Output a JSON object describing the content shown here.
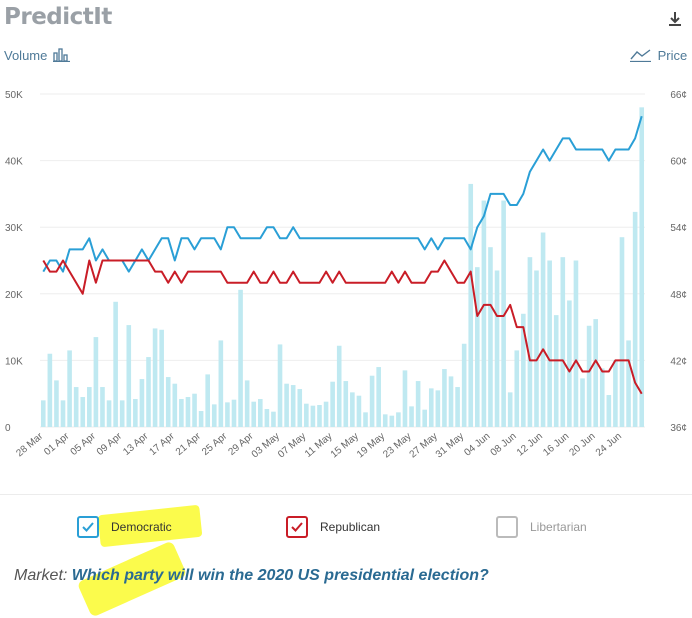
{
  "header": {
    "logo_text": "PredictIt"
  },
  "toolbar": {
    "volume_label": "Volume",
    "price_label": "Price"
  },
  "colors": {
    "democratic": "#2a9fd6",
    "republican": "#c91d27",
    "libertarian": "#bbbbbb",
    "volume_bar": "#bfe9f1"
  },
  "legend": [
    {
      "label": "Democratic",
      "checked": true,
      "color": "#2a9fd6"
    },
    {
      "label": "Republican",
      "checked": true,
      "color": "#c91d27"
    },
    {
      "label": "Libertarian",
      "checked": false,
      "color": "#bbbbbb"
    }
  ],
  "market": {
    "prefix": "Market:",
    "question": "Which party will win the 2020 US presidential election?"
  },
  "chart_data": {
    "type": "line",
    "left_axis": {
      "ticks": [
        "0",
        "10K",
        "20K",
        "30K",
        "40K",
        "50K"
      ],
      "ylim": [
        0,
        50000
      ]
    },
    "right_axis": {
      "ticks": [
        "36¢",
        "42¢",
        "48¢",
        "54¢",
        "60¢",
        "66¢"
      ],
      "ylim": [
        36,
        66
      ]
    },
    "x_tick_labels": [
      "28 Mar",
      "01 Apr",
      "05 Apr",
      "09 Apr",
      "13 Apr",
      "17 Apr",
      "21 Apr",
      "25 Apr",
      "29 Apr",
      "03 May",
      "07 May",
      "11 May",
      "15 May",
      "19 May",
      "23 May",
      "27 May",
      "31 May",
      "04 Jun",
      "08 Jun",
      "12 Jun",
      "16 Jun",
      "20 Jun",
      "24 Jun"
    ],
    "x_start": "2020-03-28",
    "x_end": "2020-06-27",
    "volume": [
      4000,
      11000,
      7000,
      4000,
      11500,
      6000,
      4500,
      6000,
      13500,
      6000,
      4000,
      18800,
      4000,
      15300,
      4200,
      7200,
      10500,
      14800,
      14600,
      7500,
      6500,
      4200,
      4500,
      5000,
      2400,
      7900,
      3400,
      13000,
      3700,
      4100,
      20600,
      7000,
      3800,
      4200,
      2700,
      2300,
      12400,
      6500,
      6300,
      5700,
      3500,
      3200,
      3300,
      3800,
      6800,
      12200,
      6900,
      5200,
      4700,
      2200,
      7700,
      9000,
      1900,
      1700,
      2200,
      8500,
      3100,
      6900,
      2600,
      5800,
      5500,
      8700,
      7600,
      6000,
      12500,
      36500,
      24000,
      34000,
      27000,
      23500,
      34000,
      5200,
      11500,
      17000,
      25500,
      23500,
      29200,
      25000,
      16800,
      25500,
      19000,
      25000,
      7300,
      15200,
      16200,
      8800,
      4800,
      10000,
      28500,
      13000,
      32300,
      48000
    ],
    "series": [
      {
        "name": "Democratic",
        "values": [
          50,
          51,
          51,
          50,
          52,
          52,
          52,
          53,
          51,
          52,
          51,
          51,
          51,
          50,
          51,
          52,
          51,
          52,
          53,
          53,
          51,
          53,
          53,
          52,
          53,
          53,
          53,
          52,
          54,
          54,
          53,
          53,
          53,
          53,
          54,
          54,
          53,
          53,
          54,
          53,
          53,
          53,
          53,
          53,
          53,
          53,
          53,
          53,
          53,
          53,
          53,
          53,
          53,
          53,
          53,
          53,
          53,
          53,
          52,
          53,
          52,
          53,
          53,
          53,
          53,
          52,
          54,
          55,
          57,
          57,
          57,
          56,
          56,
          57,
          59,
          60,
          61,
          60,
          61,
          62,
          62,
          61,
          61,
          61,
          61,
          61,
          60,
          61,
          61,
          61,
          62,
          64
        ]
      },
      {
        "name": "Republican",
        "values": [
          51,
          50,
          50,
          51,
          50,
          49,
          48,
          51,
          49,
          51,
          51,
          51,
          51,
          51,
          51,
          51,
          51,
          50,
          50,
          49,
          50,
          49,
          50,
          50,
          50,
          50,
          50,
          50,
          49,
          49,
          49,
          49,
          50,
          49,
          49,
          50,
          49,
          49,
          50,
          49,
          49,
          49,
          49,
          50,
          49,
          50,
          49,
          49,
          49,
          49,
          49,
          49,
          49,
          50,
          49,
          50,
          49,
          49,
          49,
          50,
          50,
          51,
          50,
          49,
          49,
          50,
          46,
          47,
          47,
          46,
          46,
          47,
          45,
          45,
          42,
          42,
          43,
          42,
          42,
          42,
          41,
          42,
          41,
          41,
          42,
          41,
          41,
          42,
          42,
          42,
          40,
          39
        ]
      }
    ]
  }
}
